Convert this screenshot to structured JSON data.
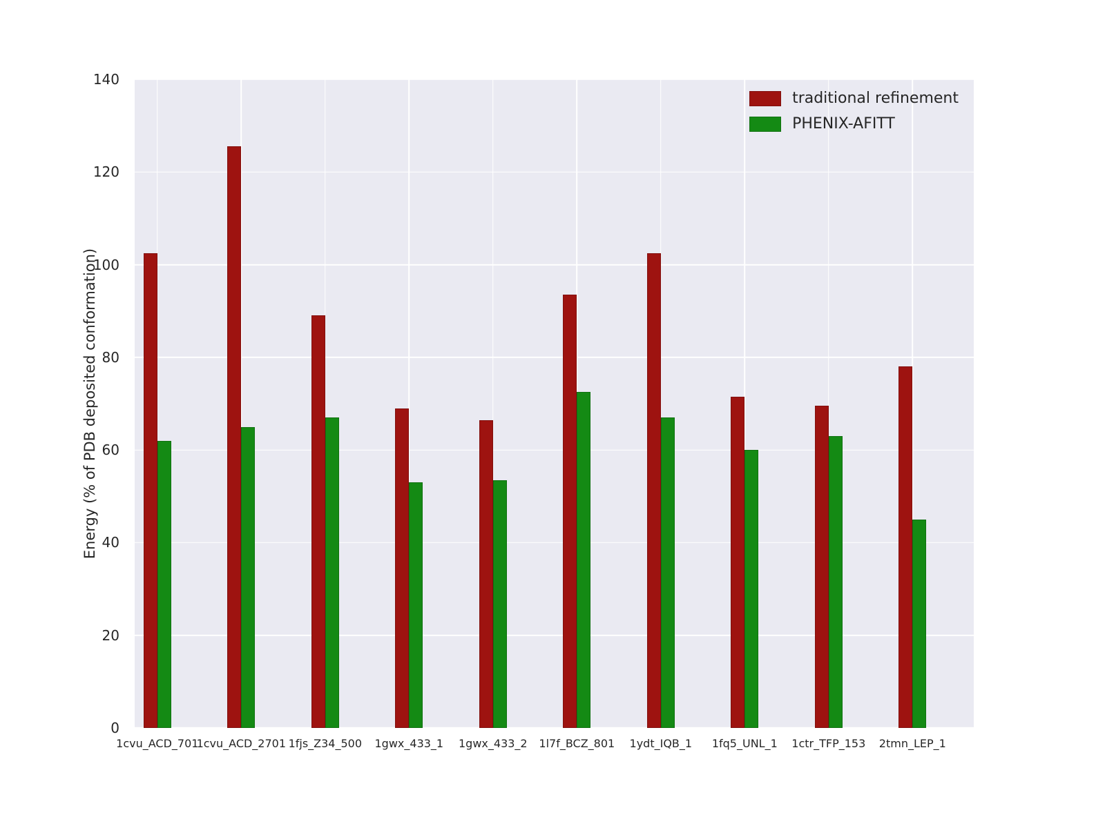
{
  "chart_data": {
    "type": "bar",
    "title": "",
    "xlabel": "",
    "ylabel": "Energy (% of PDB deposited conformation)",
    "ylim": [
      0,
      140
    ],
    "yticks": [
      0,
      20,
      40,
      60,
      80,
      100,
      120,
      140
    ],
    "grid": true,
    "legend_position": "upper right",
    "plot_background": "#eaeaf2",
    "grid_color": "#ffffff",
    "categories": [
      "1cvu_ACD_701",
      "1cvu_ACD_2701",
      "1fjs_Z34_500",
      "1gwx_433_1",
      "1gwx_433_2",
      "1l7f_BCZ_801",
      "1ydt_IQB_1",
      "1fq5_UNL_1",
      "1ctr_TFP_153",
      "2tmn_LEP_1"
    ],
    "series": [
      {
        "name": "traditional refinement",
        "color": "#9e1310",
        "values": [
          102.5,
          125.5,
          89,
          69,
          66.5,
          93.5,
          102.5,
          71.5,
          69.5,
          78
        ]
      },
      {
        "name": "PHENIX-AFITT",
        "color": "#148a14",
        "values": [
          62,
          65,
          67,
          53,
          53.5,
          72.5,
          67,
          60,
          63,
          45
        ]
      }
    ]
  }
}
